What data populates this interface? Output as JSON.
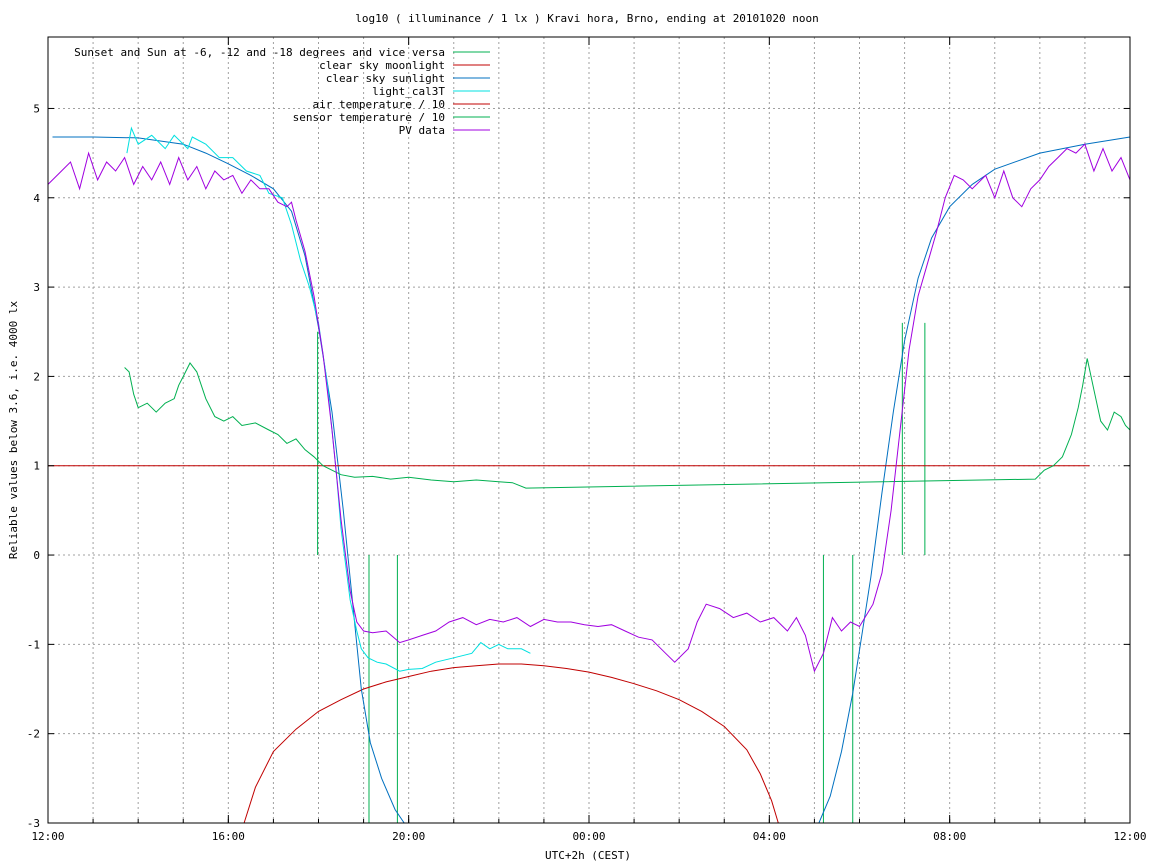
{
  "chart_data": {
    "type": "line",
    "title": "log10 ( illuminance / 1 lx ) Kravi hora, Brno, ending at 20101020 noon",
    "xlabel": "UTC+2h (CEST)",
    "ylabel": "Reliable values below 3.6, i.e. 4000 lx",
    "x_axis": {
      "unit": "hours",
      "start": "12:00",
      "end": "12:00 (next day)",
      "range": [
        0,
        24
      ]
    },
    "xlim": [
      0,
      24
    ],
    "ylim": [
      -3,
      5.8
    ],
    "x_ticks": [
      {
        "x": 0,
        "label": "12:00"
      },
      {
        "x": 4,
        "label": "16:00"
      },
      {
        "x": 8,
        "label": "20:00"
      },
      {
        "x": 12,
        "label": "00:00"
      },
      {
        "x": 16,
        "label": "04:00"
      },
      {
        "x": 20,
        "label": "08:00"
      },
      {
        "x": 24,
        "label": "12:00"
      }
    ],
    "x_minor_grid_step": 1,
    "y_ticks": [
      {
        "y": -3,
        "label": "-3"
      },
      {
        "y": -2,
        "label": "-2"
      },
      {
        "y": -1,
        "label": "-1"
      },
      {
        "y": 0,
        "label": "0"
      },
      {
        "y": 1,
        "label": "1"
      },
      {
        "y": 2,
        "label": "2"
      },
      {
        "y": 3,
        "label": "3"
      },
      {
        "y": 4,
        "label": "4"
      },
      {
        "y": 5,
        "label": "5"
      }
    ],
    "grid": true,
    "legend_position": "top-left",
    "series": [
      {
        "name": "Sunset and Sun at -6, -12 and -18 degrees and vice versa",
        "color": "#00b050",
        "kind": "vlines",
        "lines": [
          [
            5.98,
            0,
            2.5
          ],
          [
            7.12,
            -3,
            0
          ],
          [
            7.75,
            -3,
            0
          ],
          [
            17.2,
            -3,
            0
          ],
          [
            17.85,
            -3,
            0
          ],
          [
            18.95,
            0,
            2.6
          ],
          [
            19.45,
            0,
            2.6
          ]
        ]
      },
      {
        "name": "clear sky moonlight",
        "color": "#c00000",
        "points": [
          [
            4.35,
            -3
          ],
          [
            4.6,
            -2.6
          ],
          [
            5.0,
            -2.2
          ],
          [
            5.5,
            -1.95
          ],
          [
            6.0,
            -1.75
          ],
          [
            6.5,
            -1.62
          ],
          [
            7.0,
            -1.5
          ],
          [
            7.5,
            -1.42
          ],
          [
            8.0,
            -1.36
          ],
          [
            8.5,
            -1.3
          ],
          [
            9.0,
            -1.26
          ],
          [
            9.5,
            -1.24
          ],
          [
            10.0,
            -1.22
          ],
          [
            10.5,
            -1.22
          ],
          [
            11.0,
            -1.24
          ],
          [
            11.5,
            -1.27
          ],
          [
            12.0,
            -1.31
          ],
          [
            12.5,
            -1.37
          ],
          [
            13.0,
            -1.44
          ],
          [
            13.5,
            -1.52
          ],
          [
            14.0,
            -1.62
          ],
          [
            14.5,
            -1.75
          ],
          [
            15.0,
            -1.92
          ],
          [
            15.5,
            -2.18
          ],
          [
            15.8,
            -2.45
          ],
          [
            16.05,
            -2.75
          ],
          [
            16.2,
            -3
          ]
        ]
      },
      {
        "name": "clear sky sunlight",
        "color": "#0070c0",
        "points": [
          [
            0.1,
            4.68
          ],
          [
            1.0,
            4.68
          ],
          [
            2.0,
            4.67
          ],
          [
            3.0,
            4.6
          ],
          [
            3.5,
            4.5
          ],
          [
            4.0,
            4.38
          ],
          [
            4.5,
            4.25
          ],
          [
            5.0,
            4.1
          ],
          [
            5.4,
            3.85
          ],
          [
            5.7,
            3.35
          ],
          [
            6.0,
            2.55
          ],
          [
            6.3,
            1.6
          ],
          [
            6.55,
            0.5
          ],
          [
            6.75,
            -0.5
          ],
          [
            6.95,
            -1.5
          ],
          [
            7.15,
            -2.1
          ],
          [
            7.4,
            -2.5
          ],
          [
            7.7,
            -2.85
          ],
          [
            7.9,
            -3
          ],
          [
            17.1,
            -3
          ],
          [
            17.35,
            -2.7
          ],
          [
            17.6,
            -2.2
          ],
          [
            17.85,
            -1.55
          ],
          [
            18.05,
            -0.9
          ],
          [
            18.25,
            -0.25
          ],
          [
            18.5,
            0.7
          ],
          [
            18.75,
            1.6
          ],
          [
            19.0,
            2.4
          ],
          [
            19.3,
            3.1
          ],
          [
            19.6,
            3.55
          ],
          [
            20.0,
            3.9
          ],
          [
            20.5,
            4.15
          ],
          [
            21.0,
            4.32
          ],
          [
            22.0,
            4.5
          ],
          [
            23.0,
            4.6
          ],
          [
            24.0,
            4.68
          ]
        ]
      },
      {
        "name": "light_cal3T",
        "color": "#00e0e0",
        "points": [
          [
            1.75,
            4.5
          ],
          [
            1.85,
            4.78
          ],
          [
            2.0,
            4.6
          ],
          [
            2.3,
            4.7
          ],
          [
            2.6,
            4.55
          ],
          [
            2.8,
            4.7
          ],
          [
            3.1,
            4.55
          ],
          [
            3.2,
            4.68
          ],
          [
            3.5,
            4.6
          ],
          [
            3.8,
            4.45
          ],
          [
            4.1,
            4.45
          ],
          [
            4.4,
            4.3
          ],
          [
            4.7,
            4.25
          ],
          [
            4.9,
            4.05
          ],
          [
            5.2,
            4.0
          ],
          [
            5.4,
            3.7
          ],
          [
            5.6,
            3.3
          ],
          [
            5.8,
            3.0
          ],
          [
            6.0,
            2.6
          ],
          [
            6.2,
            1.9
          ],
          [
            6.4,
            0.9
          ],
          [
            6.5,
            0.3
          ],
          [
            6.7,
            -0.5
          ],
          [
            6.85,
            -0.85
          ],
          [
            6.95,
            -1.05
          ],
          [
            7.1,
            -1.15
          ],
          [
            7.3,
            -1.2
          ],
          [
            7.5,
            -1.22
          ],
          [
            7.8,
            -1.3
          ],
          [
            8.0,
            -1.28
          ],
          [
            8.3,
            -1.27
          ],
          [
            8.6,
            -1.2
          ],
          [
            9.0,
            -1.15
          ],
          [
            9.4,
            -1.1
          ],
          [
            9.6,
            -0.98
          ],
          [
            9.8,
            -1.05
          ],
          [
            10.0,
            -1.0
          ],
          [
            10.2,
            -1.05
          ],
          [
            10.5,
            -1.05
          ],
          [
            10.7,
            -1.1
          ]
        ]
      },
      {
        "name": "air temperature / 10",
        "color": "#c00000",
        "points": [
          [
            0,
            1.0
          ],
          [
            23.1,
            1.0
          ]
        ]
      },
      {
        "name": "sensor temperature / 10",
        "color": "#00b050",
        "points": [
          [
            1.7,
            2.1
          ],
          [
            1.8,
            2.05
          ],
          [
            1.9,
            1.8
          ],
          [
            2.0,
            1.65
          ],
          [
            2.2,
            1.7
          ],
          [
            2.4,
            1.6
          ],
          [
            2.6,
            1.7
          ],
          [
            2.8,
            1.75
          ],
          [
            2.9,
            1.9
          ],
          [
            3.0,
            2.0
          ],
          [
            3.15,
            2.15
          ],
          [
            3.3,
            2.05
          ],
          [
            3.5,
            1.75
          ],
          [
            3.7,
            1.55
          ],
          [
            3.9,
            1.5
          ],
          [
            4.1,
            1.55
          ],
          [
            4.3,
            1.45
          ],
          [
            4.6,
            1.48
          ],
          [
            4.9,
            1.4
          ],
          [
            5.1,
            1.35
          ],
          [
            5.3,
            1.25
          ],
          [
            5.5,
            1.3
          ],
          [
            5.7,
            1.18
          ],
          [
            5.9,
            1.1
          ],
          [
            6.1,
            1.0
          ],
          [
            6.3,
            0.95
          ],
          [
            6.5,
            0.9
          ],
          [
            6.8,
            0.87
          ],
          [
            7.2,
            0.88
          ],
          [
            7.6,
            0.85
          ],
          [
            8.0,
            0.87
          ],
          [
            8.5,
            0.84
          ],
          [
            9.0,
            0.82
          ],
          [
            9.5,
            0.84
          ],
          [
            10.0,
            0.82
          ],
          [
            10.3,
            0.81
          ],
          [
            10.6,
            0.75
          ],
          [
            21.9,
            0.85
          ],
          [
            22.1,
            0.95
          ],
          [
            22.3,
            1.0
          ],
          [
            22.5,
            1.1
          ],
          [
            22.7,
            1.35
          ],
          [
            22.85,
            1.65
          ],
          [
            22.95,
            1.9
          ],
          [
            23.05,
            2.2
          ],
          [
            23.2,
            1.85
          ],
          [
            23.35,
            1.5
          ],
          [
            23.5,
            1.4
          ],
          [
            23.65,
            1.6
          ],
          [
            23.8,
            1.55
          ],
          [
            23.9,
            1.45
          ],
          [
            24.0,
            1.4
          ]
        ]
      },
      {
        "name": "PV data",
        "color": "#a000e0",
        "points": [
          [
            0.0,
            4.15
          ],
          [
            0.3,
            4.3
          ],
          [
            0.5,
            4.4
          ],
          [
            0.7,
            4.1
          ],
          [
            0.9,
            4.5
          ],
          [
            1.1,
            4.2
          ],
          [
            1.3,
            4.4
          ],
          [
            1.5,
            4.3
          ],
          [
            1.7,
            4.45
          ],
          [
            1.9,
            4.15
          ],
          [
            2.1,
            4.35
          ],
          [
            2.3,
            4.2
          ],
          [
            2.5,
            4.4
          ],
          [
            2.7,
            4.15
          ],
          [
            2.9,
            4.45
          ],
          [
            3.1,
            4.2
          ],
          [
            3.3,
            4.35
          ],
          [
            3.5,
            4.1
          ],
          [
            3.7,
            4.3
          ],
          [
            3.9,
            4.2
          ],
          [
            4.1,
            4.25
          ],
          [
            4.3,
            4.05
          ],
          [
            4.5,
            4.2
          ],
          [
            4.7,
            4.1
          ],
          [
            4.9,
            4.1
          ],
          [
            5.1,
            3.95
          ],
          [
            5.3,
            3.9
          ],
          [
            5.4,
            3.95
          ],
          [
            5.5,
            3.75
          ],
          [
            5.7,
            3.4
          ],
          [
            5.9,
            2.9
          ],
          [
            6.1,
            2.25
          ],
          [
            6.3,
            1.4
          ],
          [
            6.5,
            0.4
          ],
          [
            6.7,
            -0.4
          ],
          [
            6.85,
            -0.75
          ],
          [
            7.0,
            -0.85
          ],
          [
            7.2,
            -0.87
          ],
          [
            7.5,
            -0.85
          ],
          [
            7.8,
            -0.98
          ],
          [
            8.0,
            -0.95
          ],
          [
            8.3,
            -0.9
          ],
          [
            8.6,
            -0.85
          ],
          [
            8.9,
            -0.75
          ],
          [
            9.2,
            -0.7
          ],
          [
            9.5,
            -0.78
          ],
          [
            9.8,
            -0.72
          ],
          [
            10.1,
            -0.75
          ],
          [
            10.4,
            -0.7
          ],
          [
            10.7,
            -0.8
          ],
          [
            11.0,
            -0.72
          ],
          [
            11.3,
            -0.75
          ],
          [
            11.6,
            -0.75
          ],
          [
            11.9,
            -0.78
          ],
          [
            12.2,
            -0.8
          ],
          [
            12.5,
            -0.78
          ],
          [
            12.8,
            -0.85
          ],
          [
            13.1,
            -0.92
          ],
          [
            13.4,
            -0.95
          ],
          [
            13.7,
            -1.1
          ],
          [
            13.9,
            -1.2
          ],
          [
            14.2,
            -1.05
          ],
          [
            14.4,
            -0.75
          ],
          [
            14.6,
            -0.55
          ],
          [
            14.9,
            -0.6
          ],
          [
            15.2,
            -0.7
          ],
          [
            15.5,
            -0.65
          ],
          [
            15.8,
            -0.75
          ],
          [
            16.1,
            -0.7
          ],
          [
            16.4,
            -0.85
          ],
          [
            16.6,
            -0.7
          ],
          [
            16.8,
            -0.9
          ],
          [
            17.0,
            -1.3
          ],
          [
            17.2,
            -1.1
          ],
          [
            17.4,
            -0.7
          ],
          [
            17.6,
            -0.85
          ],
          [
            17.8,
            -0.75
          ],
          [
            18.0,
            -0.8
          ],
          [
            18.3,
            -0.55
          ],
          [
            18.5,
            -0.2
          ],
          [
            18.7,
            0.5
          ],
          [
            18.9,
            1.4
          ],
          [
            19.1,
            2.3
          ],
          [
            19.3,
            2.9
          ],
          [
            19.5,
            3.25
          ],
          [
            19.7,
            3.6
          ],
          [
            19.9,
            4.0
          ],
          [
            20.1,
            4.25
          ],
          [
            20.3,
            4.2
          ],
          [
            20.5,
            4.1
          ],
          [
            20.8,
            4.25
          ],
          [
            21.0,
            4.0
          ],
          [
            21.2,
            4.3
          ],
          [
            21.4,
            4.0
          ],
          [
            21.6,
            3.9
          ],
          [
            21.8,
            4.1
          ],
          [
            22.0,
            4.2
          ],
          [
            22.2,
            4.35
          ],
          [
            22.4,
            4.45
          ],
          [
            22.6,
            4.55
          ],
          [
            22.8,
            4.5
          ],
          [
            23.0,
            4.6
          ],
          [
            23.2,
            4.3
          ],
          [
            23.4,
            4.55
          ],
          [
            23.6,
            4.3
          ],
          [
            23.8,
            4.45
          ],
          [
            24.0,
            4.2
          ]
        ]
      }
    ]
  }
}
